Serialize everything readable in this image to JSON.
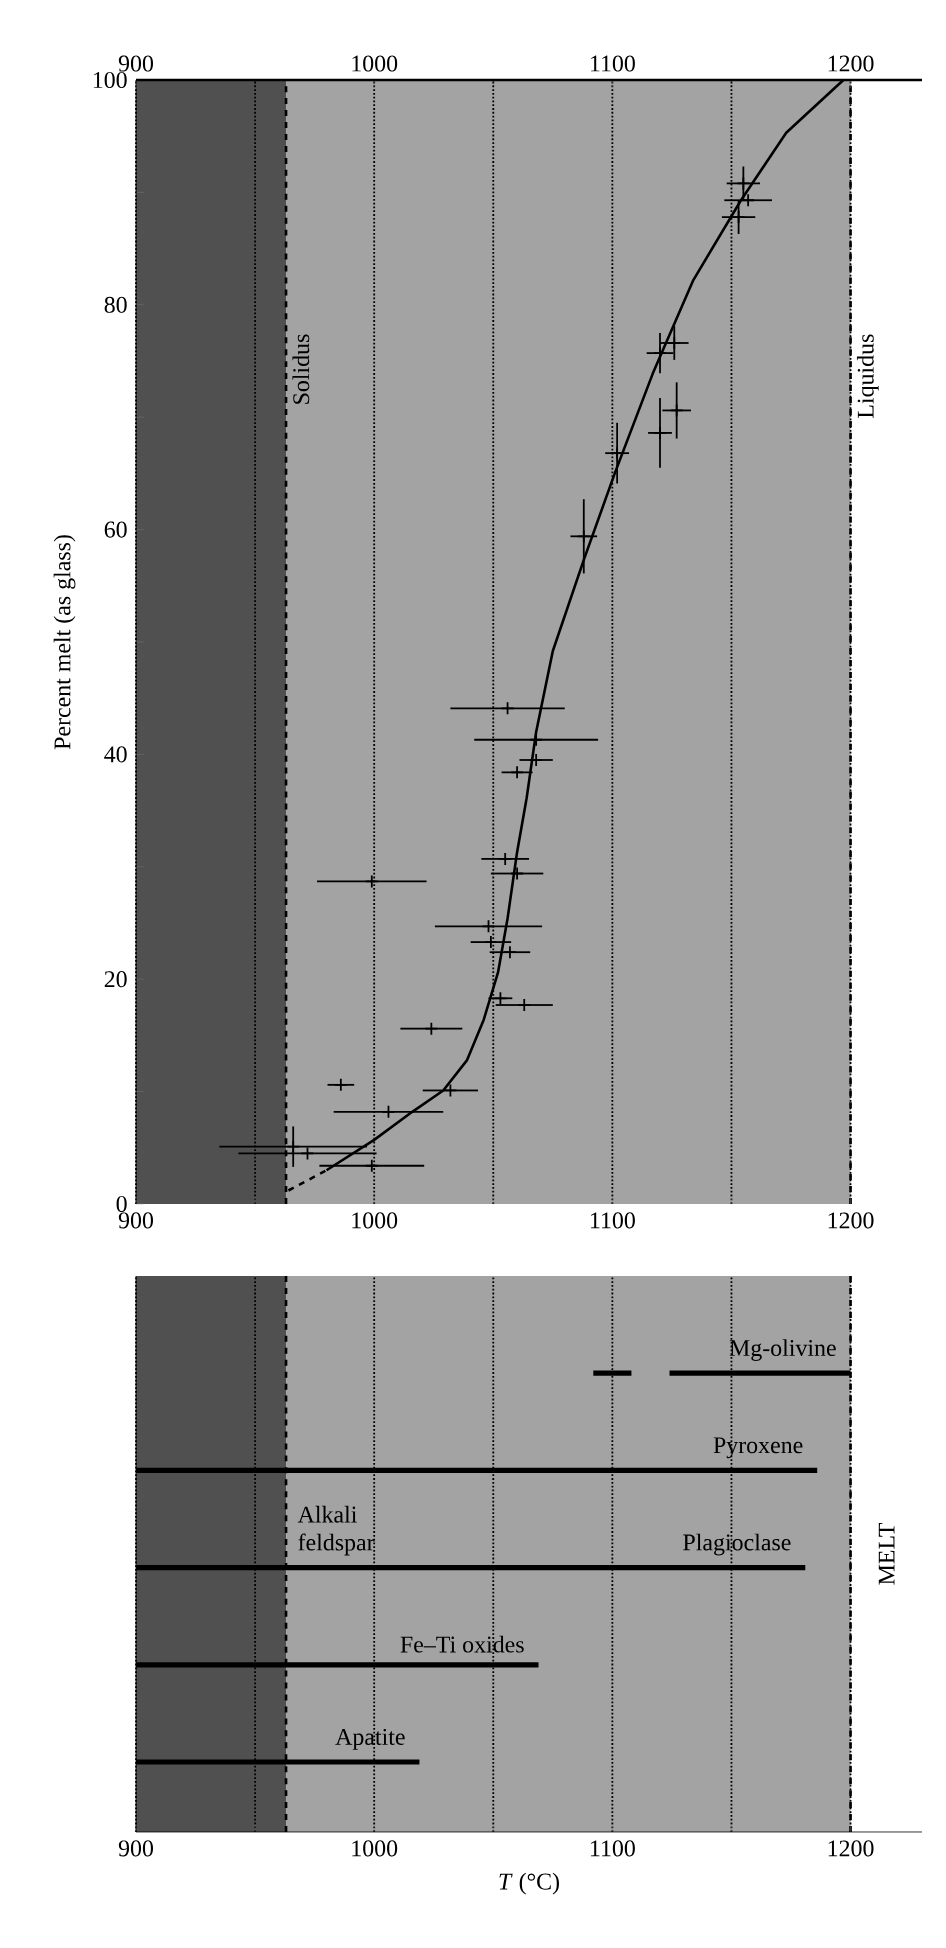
{
  "chart_data": [
    {
      "type": "scatter",
      "ylabel": "Percent melt (as glass)",
      "grid": "x",
      "xlim": [
        900,
        1230
      ],
      "xticks": [
        900,
        {
          "value": 950,
          "label": null
        },
        1000,
        {
          "value": 1050,
          "label": null
        },
        1100,
        {
          "value": 1150,
          "label": null
        },
        1200
      ],
      "x2lim": [
        900,
        1230
      ],
      "x2ticks": [
        900,
        1000,
        1100,
        1200
      ],
      "ylim": [
        0,
        100
      ],
      "yticks": [
        0,
        {
          "value": 10,
          "label": null
        },
        20,
        {
          "value": 30,
          "label": null
        },
        40,
        {
          "value": 50,
          "label": null
        },
        60,
        {
          "value": 70,
          "label": null
        },
        80,
        {
          "value": 90,
          "label": null
        },
        100
      ],
      "bands": [
        {
          "axis": "x",
          "from": 900,
          "to": 963,
          "color": "#505050"
        },
        {
          "axis": "x",
          "from": 963,
          "to": 1200,
          "color": "#a3a3a3"
        }
      ],
      "ref_lines": [
        {
          "axis": "x",
          "value": 963,
          "label": "Solidus",
          "line_style": "dashed"
        },
        {
          "axis": "x",
          "value": 1200,
          "label": "Liquidus",
          "line_style": "dashed"
        }
      ],
      "series": [
        {
          "type": "scatter",
          "marker": "cross",
          "color": "#000000",
          "x": [
            1155,
            1157,
            1153,
            1120,
            1126,
            1120,
            1127,
            1102,
            1088,
            1056,
            1068,
            1068,
            1060,
            1055,
            1060,
            999,
            1048,
            1049,
            1057,
            1053,
            1063,
            1024,
            986,
            1032,
            1006,
            966,
            972,
            999
          ],
          "values": [
            90.8,
            89.3,
            87.8,
            75.7,
            76.6,
            68.6,
            70.6,
            66.8,
            59.4,
            44.1,
            41.3,
            39.5,
            38.4,
            30.7,
            29.4,
            28.7,
            24.7,
            23.3,
            22.4,
            18.3,
            17.7,
            15.6,
            10.6,
            10.1,
            8.2,
            5.1,
            4.5,
            3.4
          ],
          "xerrors": [
            7,
            10,
            7,
            5.6,
            6,
            5,
            6,
            5,
            5.6,
            24,
            26,
            7,
            6.5,
            10,
            11,
            23,
            22.5,
            8.5,
            8.5,
            5,
            12,
            13,
            5.6,
            11.6,
            23,
            31,
            29,
            22
          ],
          "errors": [
            1.5,
            null,
            1.5,
            1.8,
            1.5,
            3.1,
            2.5,
            2.7,
            3.3,
            null,
            null,
            null,
            null,
            null,
            null,
            null,
            null,
            null,
            null,
            null,
            null,
            null,
            null,
            null,
            null,
            1.8,
            null,
            null
          ]
        },
        {
          "type": "line",
          "color": "#000000",
          "x": [
            980,
            1000,
            1016,
            1029,
            1039,
            1046,
            1052,
            1056,
            1060,
            1064,
            1068,
            1075,
            1088,
            1101,
            1117,
            1134,
            1154,
            1173,
            1197
          ],
          "values": [
            3.0,
            5.7,
            8.2,
            10.1,
            12.8,
            16.4,
            20.6,
            25.4,
            31.3,
            36.1,
            42,
            49.2,
            57.3,
            65,
            73.9,
            82.2,
            89.3,
            95.3,
            100
          ]
        },
        {
          "type": "line",
          "color": "#000000",
          "line_style": "dashed",
          "x": [
            964,
            980
          ],
          "values": [
            1.2,
            3.0
          ]
        }
      ]
    },
    {
      "type": "bar",
      "orientation": "horizontal",
      "xlabel": "*T* (°C)",
      "grid": "x",
      "tick_labels": "x",
      "categories": [
        "Mg-olivine",
        "Pyroxene",
        "Plagioclase",
        "Fe–Ti oxides",
        "Apatite"
      ],
      "xlim": [
        900,
        1230
      ],
      "xticks": [
        900,
        {
          "value": 950,
          "label": null
        },
        1000,
        {
          "value": 1050,
          "label": null
        },
        1100,
        {
          "value": 1150,
          "label": null
        },
        1200
      ],
      "bands": [
        {
          "axis": "x",
          "from": 900,
          "to": 963,
          "color": "#505050"
        },
        {
          "axis": "x",
          "from": 963,
          "to": 1200,
          "color": "#a3a3a3"
        }
      ],
      "ref_lines": [
        {
          "axis": "x",
          "value": 963,
          "label": null,
          "line_style": "dashed"
        },
        {
          "axis": "x",
          "value": 1200,
          "label": null,
          "line_style": "dashed"
        }
      ],
      "annotations": [
        {
          "text": "Alkali feldspar",
          "x": 966,
          "y": "Plagioclase"
        },
        "MELT"
      ],
      "series": [
        {
          "color": "#000000",
          "base": [
            1092,
            900,
            900,
            900,
            900
          ],
          "values": [
            16,
            286,
            281,
            169,
            119
          ]
        },
        {
          "color": "#000000",
          "base": [
            1124,
            null,
            null,
            null,
            null
          ],
          "values": [
            76,
            null,
            null,
            null,
            null
          ]
        }
      ]
    }
  ]
}
